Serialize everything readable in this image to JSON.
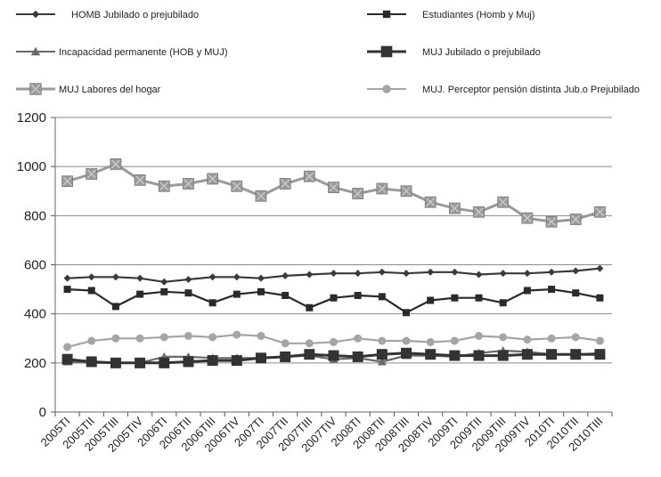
{
  "chart_data": {
    "type": "line",
    "categories": [
      "2005TI",
      "2005TII",
      "2005TIII",
      "2005TIV",
      "2006TI",
      "2006TII",
      "2006TIII",
      "2006TIV",
      "2007TI",
      "2007TII",
      "2007TIII",
      "2007TIV",
      "2008TI",
      "2008TII",
      "2008TIII",
      "2008TIV",
      "2009TI",
      "2009TII",
      "2009TIII",
      "2009TIV",
      "2010TI",
      "2010TII",
      "2010TIII"
    ],
    "x_tick_labels": [
      "2005TI",
      "2005TII",
      "2005TIII",
      "2005TIV",
      "2006TI",
      "2006TII",
      "2006TIII",
      "2006TIV",
      "2007TI",
      "2007TII",
      "2007TIII",
      "2007TIV",
      "2008TI",
      "2008TII",
      "2008TIII",
      "2008TIV",
      "2009TI",
      "2009TII",
      "2009TIII",
      "2009TIV",
      "2010TI",
      "2010TII",
      "2010TIII"
    ],
    "ylim": [
      0,
      1200
    ],
    "y_ticks": [
      0,
      200,
      400,
      600,
      800,
      1000,
      1200
    ],
    "grid": true,
    "legend_position": "top",
    "series": [
      {
        "name": "HOMB Jubilado o prejubilado",
        "marker": "diamond",
        "color": "#3a3a3a",
        "values": [
          545,
          550,
          550,
          545,
          530,
          540,
          550,
          550,
          545,
          555,
          560,
          565,
          565,
          570,
          565,
          570,
          570,
          560,
          565,
          565,
          570,
          575,
          585
        ]
      },
      {
        "name": "Estudiantes (Homb y Muj)",
        "marker": "square-small",
        "color": "#2a2a2a",
        "values": [
          500,
          495,
          430,
          480,
          490,
          485,
          445,
          480,
          490,
          475,
          425,
          465,
          475,
          470,
          405,
          455,
          465,
          465,
          445,
          495,
          500,
          485,
          465
        ]
      },
      {
        "name": "Incapacidad permanente (HOB y MUJ)",
        "marker": "triangle",
        "color": "#6a6a6a",
        "values": [
          205,
          200,
          200,
          200,
          225,
          225,
          220,
          220,
          220,
          225,
          230,
          215,
          220,
          205,
          230,
          230,
          225,
          240,
          250,
          245,
          235,
          235,
          240
        ]
      },
      {
        "name": "MUJ Jubilado o prejubilado",
        "marker": "square",
        "color": "#333333",
        "values": [
          215,
          205,
          200,
          200,
          200,
          205,
          210,
          210,
          220,
          225,
          235,
          230,
          225,
          235,
          240,
          235,
          230,
          230,
          230,
          235,
          235,
          235,
          235
        ]
      },
      {
        "name": "MUJ Labores del hogar",
        "marker": "square-x",
        "color": "#9a9a9a",
        "values": [
          940,
          970,
          1010,
          945,
          920,
          930,
          950,
          920,
          880,
          930,
          960,
          915,
          890,
          910,
          900,
          855,
          830,
          815,
          855,
          790,
          775,
          785,
          815
        ]
      },
      {
        "name": "MUJ. Perceptor pensión distinta Jub.o Prejubilado",
        "marker": "circle",
        "color": "#a5a5a5",
        "values": [
          265,
          290,
          300,
          300,
          305,
          310,
          305,
          315,
          310,
          280,
          280,
          285,
          300,
          290,
          290,
          285,
          290,
          310,
          305,
          295,
          300,
          305,
          290
        ]
      }
    ],
    "legend": [
      {
        "label": "HOMB Jubilado o prejubilado"
      },
      {
        "label": "Estudiantes (Homb y Muj)"
      },
      {
        "label": "Incapacidad permanente (HOB y MUJ)"
      },
      {
        "label": "MUJ Jubilado o prejubilado"
      },
      {
        "label": "MUJ Labores del hogar"
      },
      {
        "label": "MUJ. Perceptor pensión distinta Jub.o Prejubilado"
      }
    ]
  }
}
